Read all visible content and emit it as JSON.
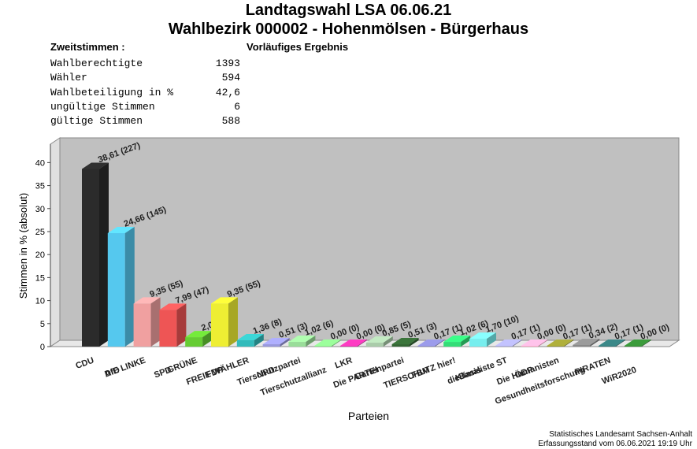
{
  "header": {
    "title": "Landtagswahl LSA 06.06.21",
    "subtitle": "Wahlbezirk 000002 - Hohenmölsen - Bürgerhaus",
    "section": "Zweitstimmen :",
    "status": "Vorläufiges Ergebnis"
  },
  "stats": [
    {
      "label": "Wahlberechtigte",
      "value": "1393"
    },
    {
      "label": "Wähler",
      "value": "594"
    },
    {
      "label": "Wahlbeteiligung in %",
      "value": "42,6"
    },
    {
      "label": "ungültige Stimmen",
      "value": "6"
    },
    {
      "label": "gültige Stimmen",
      "value": "588"
    }
  ],
  "footer": {
    "line1": "Statistisches Landesamt Sachsen-Anhalt",
    "line2": "Erfassungsstand vom 06.06.2021 19:19 Uhr"
  },
  "chart_data": {
    "type": "bar",
    "xlabel": "Parteien",
    "ylabel": "Stimmen in % (absolut)",
    "ylim": [
      0,
      44
    ],
    "yticks": [
      0,
      5,
      10,
      15,
      20,
      25,
      30,
      35,
      40
    ],
    "grid": false,
    "categories": [
      "CDU",
      "AfD",
      "DIE LINKE",
      "SPD",
      "GRÜNE",
      "FDP",
      "FREIE WÄHLER",
      "NPD",
      "Tierschutzpartei",
      "Tierschutzallianz",
      "LKR",
      "Die PARTEI",
      "Gartenpartei",
      "FBM",
      "TIERSCHUTZ hier!",
      "dieBasis",
      "Klimaliste ST",
      "ÖDP",
      "Die Humanisten",
      "Gesundheitsforschung",
      "PIRATEN",
      "WiR2020"
    ],
    "values": [
      38.61,
      24.66,
      9.35,
      7.99,
      2.04,
      9.35,
      1.36,
      0.51,
      1.02,
      0.0,
      0.0,
      0.85,
      0.51,
      0.17,
      1.02,
      1.7,
      0.17,
      0.0,
      0.17,
      0.34,
      0.17,
      0.0
    ],
    "data_labels": [
      "38,61 (227)",
      "24,66 (145)",
      "9,35 (55)",
      "7,99 (47)",
      "2,04 (12)",
      "9,35 (55)",
      "1,36 (8)",
      "0,51 (3)",
      "1,02 (6)",
      "0,00 (0)",
      "0,00 (0)",
      "0,85 (5)",
      "0,51 (3)",
      "0,17 (1)",
      "1,02 (6)",
      "1,70 (10)",
      "0,17 (1)",
      "0,00 (0)",
      "0,17 (1)",
      "0,34 (2)",
      "0,17 (1)",
      "0,00 (0)"
    ],
    "colors": [
      "#2b2b2b",
      "#55c8ee",
      "#f0a0a0",
      "#ee5555",
      "#66cc33",
      "#eeee33",
      "#33bbbb",
      "#9999dd",
      "#99dd99",
      "#88ee88",
      "#dd33aa",
      "#aaccaa",
      "#336633",
      "#8888cc",
      "#33dd77",
      "#77eeee",
      "#aaaadd",
      "#ffaacc",
      "#999933",
      "#888888",
      "#337777",
      "#338833"
    ]
  }
}
